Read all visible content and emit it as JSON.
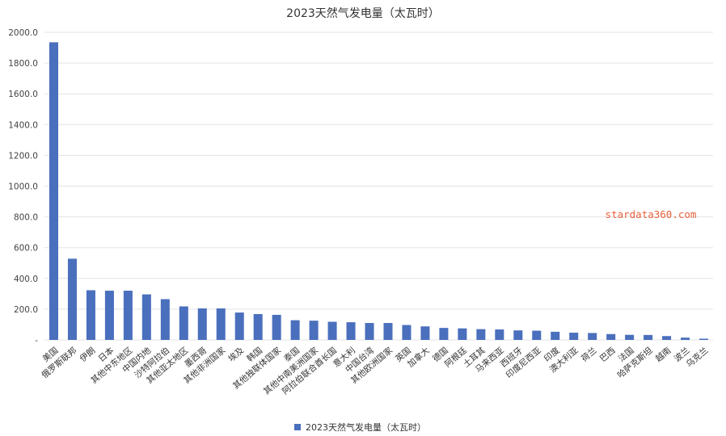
{
  "page": {
    "title": "2023天然气发电量（太瓦时）",
    "watermark": "stardata360.com"
  },
  "colors": {
    "bar": "#4a6fbd",
    "grid": "#e3e3e3",
    "axis": "#999999",
    "watermark": "#e8603c"
  },
  "chart_data": {
    "type": "bar",
    "title": "2023天然气发电量（太瓦时）",
    "xlabel": "",
    "ylabel": "",
    "ylim": [
      0,
      2000
    ],
    "y_ticks": [
      "-",
      "200.0",
      "400.0",
      "600.0",
      "800.0",
      "1000.0",
      "1200.0",
      "1400.0",
      "1600.0",
      "1800.0",
      "2000.0"
    ],
    "y_tick_values": [
      0,
      200,
      400,
      600,
      800,
      1000,
      1200,
      1400,
      1600,
      1800,
      2000
    ],
    "grid": true,
    "legend_position": "bottom",
    "categories": [
      "美国",
      "俄罗斯联邦",
      "伊朗",
      "日本",
      "其他中东地区",
      "中国内地",
      "沙特阿拉伯",
      "其他亚太地区",
      "墨西哥",
      "其他非洲国家",
      "埃及",
      "韩国",
      "其他独联体国家",
      "泰国",
      "其他中南美洲国家",
      "阿拉伯联合酋长国",
      "意大利",
      "中国台湾",
      "其他欧洲国家",
      "英国",
      "加拿大",
      "德国",
      "阿根廷",
      "土耳其",
      "马来西亚",
      "西班牙",
      "印度尼西亚",
      "印度",
      "澳大利亚",
      "荷兰",
      "巴西",
      "法国",
      "哈萨克斯坦",
      "越南",
      "波兰",
      "乌克兰"
    ],
    "series": [
      {
        "name": "2023天然气发电量（太瓦时）",
        "values": [
          1935,
          528,
          323,
          320,
          320,
          296,
          265,
          218,
          205,
          205,
          178,
          168,
          163,
          128,
          125,
          118,
          115,
          110,
          110,
          97,
          88,
          78,
          75,
          70,
          68,
          62,
          60,
          53,
          47,
          45,
          38,
          33,
          32,
          25,
          15,
          8
        ]
      }
    ]
  }
}
